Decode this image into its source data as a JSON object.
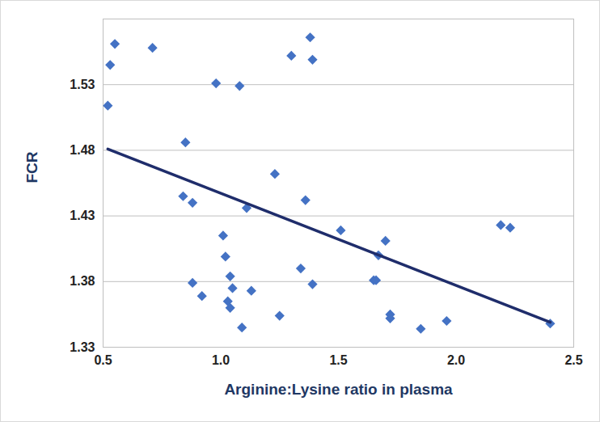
{
  "chart_data": {
    "type": "scatter",
    "x_label": "Arginine:Lysine ratio in plasma",
    "y_label": "FCR",
    "color": "#4472c4",
    "marker": "diamond",
    "x": [
      0.53,
      0.55,
      0.52,
      0.71,
      0.98,
      1.08,
      1.3,
      1.38,
      1.39,
      0.85,
      1.23,
      0.84,
      0.88,
      1.11,
      1.36,
      1.51,
      1.7,
      1.01,
      1.02,
      1.67,
      2.19,
      2.23,
      1.34,
      1.04,
      1.65,
      1.66,
      1.39,
      0.88,
      1.05,
      1.13,
      0.92,
      1.03,
      1.04,
      1.25,
      1.09,
      1.72,
      1.72,
      1.96,
      1.85,
      2.4
    ],
    "values": [
      1.545,
      1.561,
      1.514,
      1.558,
      1.531,
      1.529,
      1.552,
      1.566,
      1.549,
      1.486,
      1.462,
      1.445,
      1.44,
      1.436,
      1.442,
      1.419,
      1.411,
      1.415,
      1.399,
      1.4,
      1.423,
      1.421,
      1.39,
      1.384,
      1.381,
      1.381,
      1.378,
      1.379,
      1.375,
      1.373,
      1.369,
      1.365,
      1.36,
      1.354,
      1.345,
      1.355,
      1.352,
      1.35,
      1.344,
      1.348
    ],
    "trendline": {
      "x": [
        0.52,
        2.4
      ],
      "values": [
        1.481,
        1.349
      ],
      "color": "#1f2d6b",
      "line_style": "solid"
    },
    "xlim": [
      0.5,
      2.5
    ],
    "xticks": [
      0.5,
      1,
      1.5,
      2,
      2.5
    ],
    "ylim": [
      1.33,
      1.58
    ],
    "yticks": [
      1.33,
      1.38,
      1.43,
      1.48,
      1.53
    ],
    "grid": true
  }
}
